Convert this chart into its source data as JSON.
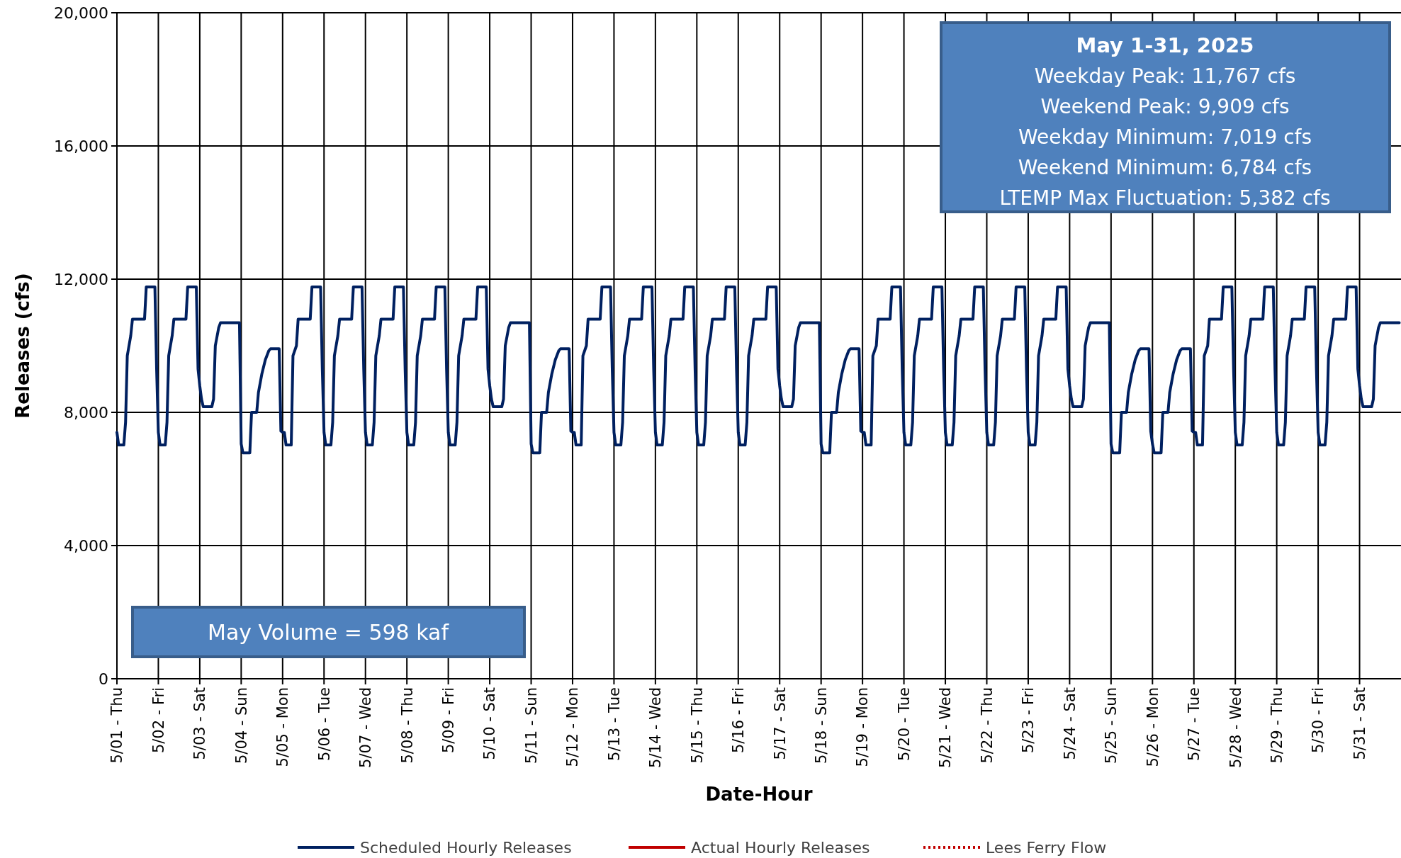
{
  "chart_data": {
    "type": "line",
    "xlabel": "Date-Hour",
    "ylabel": "Releases (cfs)",
    "grid": true,
    "legend": "bottom",
    "xlim": [
      "2025-05-01T00:00",
      "2025-06-01T00:00"
    ],
    "ylim": [
      0,
      20000
    ],
    "yticks": [
      0,
      {
        "value": 4000,
        "label": "4,000"
      },
      {
        "value": 8000,
        "label": "8,000"
      },
      {
        "value": 12000,
        "label": "12,000"
      },
      {
        "value": 16000,
        "label": "16,000"
      },
      {
        "value": 20000,
        "label": "20,000"
      }
    ],
    "xticks": [
      {
        "value": "2025-05-01",
        "label": "5/01 - Thu"
      },
      {
        "value": "2025-05-02",
        "label": "5/02 - Fri"
      },
      {
        "value": "2025-05-03",
        "label": "5/03 - Sat"
      },
      {
        "value": "2025-05-04",
        "label": "5/04 - Sun"
      },
      {
        "value": "2025-05-05",
        "label": "5/05 - Mon"
      },
      {
        "value": "2025-05-06",
        "label": "5/06 - Tue"
      },
      {
        "value": "2025-05-07",
        "label": "5/07 - Wed"
      },
      {
        "value": "2025-05-08",
        "label": "5/08 - Thu"
      },
      {
        "value": "2025-05-09",
        "label": "5/09 - Fri"
      },
      {
        "value": "2025-05-10",
        "label": "5/10 - Sat"
      },
      {
        "value": "2025-05-11",
        "label": "5/11 - Sun"
      },
      {
        "value": "2025-05-12",
        "label": "5/12 - Mon"
      },
      {
        "value": "2025-05-13",
        "label": "5/13 - Tue"
      },
      {
        "value": "2025-05-14",
        "label": "5/14 - Wed"
      },
      {
        "value": "2025-05-15",
        "label": "5/15 - Thu"
      },
      {
        "value": "2025-05-16",
        "label": "5/16 - Fri"
      },
      {
        "value": "2025-05-17",
        "label": "5/17 - Sat"
      },
      {
        "value": "2025-05-18",
        "label": "5/18 - Sun"
      },
      {
        "value": "2025-05-19",
        "label": "5/19 - Mon"
      },
      {
        "value": "2025-05-20",
        "label": "5/20 - Tue"
      },
      {
        "value": "2025-05-21",
        "label": "5/21 - Wed"
      },
      {
        "value": "2025-05-22",
        "label": "5/22 - Thu"
      },
      {
        "value": "2025-05-23",
        "label": "5/23 - Fri"
      },
      {
        "value": "2025-05-24",
        "label": "5/24 - Sat"
      },
      {
        "value": "2025-05-25",
        "label": "5/25 - Sun"
      },
      {
        "value": "2025-05-26",
        "label": "5/26 - Mon"
      },
      {
        "value": "2025-05-27",
        "label": "5/27 - Tue"
      },
      {
        "value": "2025-05-28",
        "label": "5/28 - Wed"
      },
      {
        "value": "2025-05-29",
        "label": "5/29 - Thu"
      },
      {
        "value": "2025-05-30",
        "label": "5/30 - Fri"
      },
      {
        "value": "2025-05-31",
        "label": "5/31 - Sat"
      }
    ],
    "annotations": [
      "May 1-31, 2025",
      "Weekday Peak: 11,767 cfs",
      "Weekend Peak: 9,909 cfs",
      "Weekday Minimum: 7,019 cfs",
      "Weekend Minimum:  6,784 cfs",
      "LTEMP Max Fluctuation: 5,382 cfs",
      "May Volume = 598 kaf"
    ],
    "series": [
      {
        "name": "Scheduled Hourly Releases",
        "color": "#002060",
        "line_style": "solid",
        "x": [
          "2025-05-01T00:00",
          "2025-05-01T01:00",
          "2025-05-01T04:00",
          "2025-05-01T05:00",
          "2025-05-01T06:00",
          "2025-05-01T07:00",
          "2025-05-01T08:00",
          "2025-05-01T09:00",
          "2025-05-01T16:00",
          "2025-05-01T17:00",
          "2025-05-01T22:00",
          "2025-05-01T23:00",
          "2025-05-02T00:00",
          "2025-05-02T01:00",
          "2025-05-02T04:00",
          "2025-05-02T05:00",
          "2025-05-02T06:00",
          "2025-05-02T07:00",
          "2025-05-02T08:00",
          "2025-05-02T09:00",
          "2025-05-02T16:00",
          "2025-05-02T17:00",
          "2025-05-02T22:00",
          "2025-05-02T23:00",
          "2025-05-03T00:00",
          "2025-05-03T01:00",
          "2025-05-03T02:00",
          "2025-05-03T07:00",
          "2025-05-03T08:00",
          "2025-05-03T09:00",
          "2025-05-03T11:00",
          "2025-05-03T12:00",
          "2025-05-03T23:00",
          "2025-05-04T00:00",
          "2025-05-04T01:00",
          "2025-05-04T05:00",
          "2025-05-04T06:00",
          "2025-05-04T09:00",
          "2025-05-04T10:00",
          "2025-05-04T12:00",
          "2025-05-04T14:00",
          "2025-05-04T16:00",
          "2025-05-04T17:00",
          "2025-05-04T22:00",
          "2025-05-04T23:00",
          "2025-05-05T00:00",
          "2025-05-05T01:00",
          "2025-05-05T02:00",
          "2025-05-05T05:00",
          "2025-05-05T06:00",
          "2025-05-05T08:00",
          "2025-05-05T09:00",
          "2025-05-05T16:00",
          "2025-05-05T17:00",
          "2025-05-05T22:00",
          "2025-05-05T23:00",
          "2025-05-06T00:00",
          "2025-05-06T01:00",
          "2025-05-06T04:00",
          "2025-05-06T05:00",
          "2025-05-06T06:00",
          "2025-05-06T07:00",
          "2025-05-06T08:00",
          "2025-05-06T09:00",
          "2025-05-06T16:00",
          "2025-05-06T17:00",
          "2025-05-06T22:00",
          "2025-05-06T23:00",
          "2025-05-07T00:00",
          "2025-05-07T01:00",
          "2025-05-07T04:00",
          "2025-05-07T05:00",
          "2025-05-07T06:00",
          "2025-05-07T07:00",
          "2025-05-07T08:00",
          "2025-05-07T09:00",
          "2025-05-07T16:00",
          "2025-05-07T17:00",
          "2025-05-07T22:00",
          "2025-05-07T23:00",
          "2025-05-08T00:00",
          "2025-05-08T01:00",
          "2025-05-08T04:00",
          "2025-05-08T05:00",
          "2025-05-08T06:00",
          "2025-05-08T07:00",
          "2025-05-08T08:00",
          "2025-05-08T09:00",
          "2025-05-08T16:00",
          "2025-05-08T17:00",
          "2025-05-08T22:00",
          "2025-05-08T23:00",
          "2025-05-09T00:00",
          "2025-05-09T01:00",
          "2025-05-09T04:00",
          "2025-05-09T05:00",
          "2025-05-09T06:00",
          "2025-05-09T07:00",
          "2025-05-09T08:00",
          "2025-05-09T09:00",
          "2025-05-09T16:00",
          "2025-05-09T17:00",
          "2025-05-09T22:00",
          "2025-05-09T23:00",
          "2025-05-10T00:00",
          "2025-05-10T01:00",
          "2025-05-10T02:00",
          "2025-05-10T07:00",
          "2025-05-10T08:00",
          "2025-05-10T09:00",
          "2025-05-10T11:00",
          "2025-05-10T12:00",
          "2025-05-10T23:00",
          "2025-05-11T00:00",
          "2025-05-11T01:00",
          "2025-05-11T05:00",
          "2025-05-11T06:00",
          "2025-05-11T09:00",
          "2025-05-11T10:00",
          "2025-05-11T12:00",
          "2025-05-11T14:00",
          "2025-05-11T16:00",
          "2025-05-11T17:00",
          "2025-05-11T22:00",
          "2025-05-11T23:00",
          "2025-05-12T00:00",
          "2025-05-12T01:00",
          "2025-05-12T02:00",
          "2025-05-12T05:00",
          "2025-05-12T06:00",
          "2025-05-12T08:00",
          "2025-05-12T09:00",
          "2025-05-12T16:00",
          "2025-05-12T17:00",
          "2025-05-12T22:00",
          "2025-05-12T23:00",
          "2025-05-13T00:00",
          "2025-05-13T01:00",
          "2025-05-13T04:00",
          "2025-05-13T05:00",
          "2025-05-13T06:00",
          "2025-05-13T07:00",
          "2025-05-13T08:00",
          "2025-05-13T09:00",
          "2025-05-13T16:00",
          "2025-05-13T17:00",
          "2025-05-13T22:00",
          "2025-05-13T23:00",
          "2025-05-14T00:00",
          "2025-05-14T01:00",
          "2025-05-14T04:00",
          "2025-05-14T05:00",
          "2025-05-14T06:00",
          "2025-05-14T07:00",
          "2025-05-14T08:00",
          "2025-05-14T09:00",
          "2025-05-14T16:00",
          "2025-05-14T17:00",
          "2025-05-14T22:00",
          "2025-05-14T23:00",
          "2025-05-15T00:00",
          "2025-05-15T01:00",
          "2025-05-15T04:00",
          "2025-05-15T05:00",
          "2025-05-15T06:00",
          "2025-05-15T07:00",
          "2025-05-15T08:00",
          "2025-05-15T09:00",
          "2025-05-15T16:00",
          "2025-05-15T17:00",
          "2025-05-15T22:00",
          "2025-05-15T23:00",
          "2025-05-16T00:00",
          "2025-05-16T01:00",
          "2025-05-16T04:00",
          "2025-05-16T05:00",
          "2025-05-16T06:00",
          "2025-05-16T07:00",
          "2025-05-16T08:00",
          "2025-05-16T09:00",
          "2025-05-16T16:00",
          "2025-05-16T17:00",
          "2025-05-16T22:00",
          "2025-05-16T23:00",
          "2025-05-17T00:00",
          "2025-05-17T01:00",
          "2025-05-17T02:00",
          "2025-05-17T07:00",
          "2025-05-17T08:00",
          "2025-05-17T09:00",
          "2025-05-17T11:00",
          "2025-05-17T12:00",
          "2025-05-17T23:00",
          "2025-05-18T00:00",
          "2025-05-18T01:00",
          "2025-05-18T05:00",
          "2025-05-18T06:00",
          "2025-05-18T09:00",
          "2025-05-18T10:00",
          "2025-05-18T12:00",
          "2025-05-18T14:00",
          "2025-05-18T16:00",
          "2025-05-18T17:00",
          "2025-05-18T22:00",
          "2025-05-18T23:00",
          "2025-05-19T00:00",
          "2025-05-19T01:00",
          "2025-05-19T02:00",
          "2025-05-19T05:00",
          "2025-05-19T06:00",
          "2025-05-19T08:00",
          "2025-05-19T09:00",
          "2025-05-19T16:00",
          "2025-05-19T17:00",
          "2025-05-19T22:00",
          "2025-05-19T23:00",
          "2025-05-20T00:00",
          "2025-05-20T01:00",
          "2025-05-20T04:00",
          "2025-05-20T05:00",
          "2025-05-20T06:00",
          "2025-05-20T07:00",
          "2025-05-20T08:00",
          "2025-05-20T09:00",
          "2025-05-20T16:00",
          "2025-05-20T17:00",
          "2025-05-20T22:00",
          "2025-05-20T23:00",
          "2025-05-21T00:00",
          "2025-05-21T01:00",
          "2025-05-21T04:00",
          "2025-05-21T05:00",
          "2025-05-21T06:00",
          "2025-05-21T07:00",
          "2025-05-21T08:00",
          "2025-05-21T09:00",
          "2025-05-21T16:00",
          "2025-05-21T17:00",
          "2025-05-21T22:00",
          "2025-05-21T23:00",
          "2025-05-22T00:00",
          "2025-05-22T01:00",
          "2025-05-22T04:00",
          "2025-05-22T05:00",
          "2025-05-22T06:00",
          "2025-05-22T07:00",
          "2025-05-22T08:00",
          "2025-05-22T09:00",
          "2025-05-22T16:00",
          "2025-05-22T17:00",
          "2025-05-22T22:00",
          "2025-05-22T23:00",
          "2025-05-23T00:00",
          "2025-05-23T01:00",
          "2025-05-23T04:00",
          "2025-05-23T05:00",
          "2025-05-23T06:00",
          "2025-05-23T07:00",
          "2025-05-23T08:00",
          "2025-05-23T09:00",
          "2025-05-23T16:00",
          "2025-05-23T17:00",
          "2025-05-23T22:00",
          "2025-05-23T23:00",
          "2025-05-24T00:00",
          "2025-05-24T01:00",
          "2025-05-24T02:00",
          "2025-05-24T07:00",
          "2025-05-24T08:00",
          "2025-05-24T09:00",
          "2025-05-24T11:00",
          "2025-05-24T12:00",
          "2025-05-24T23:00",
          "2025-05-25T00:00",
          "2025-05-25T01:00",
          "2025-05-25T05:00",
          "2025-05-25T06:00",
          "2025-05-25T09:00",
          "2025-05-25T10:00",
          "2025-05-25T12:00",
          "2025-05-25T14:00",
          "2025-05-25T16:00",
          "2025-05-25T17:00",
          "2025-05-25T22:00",
          "2025-05-25T23:00",
          "2025-05-26T00:00",
          "2025-05-26T01:00",
          "2025-05-26T05:00",
          "2025-05-26T06:00",
          "2025-05-26T09:00",
          "2025-05-26T10:00",
          "2025-05-26T12:00",
          "2025-05-26T14:00",
          "2025-05-26T16:00",
          "2025-05-26T17:00",
          "2025-05-26T22:00",
          "2025-05-26T23:00",
          "2025-05-27T00:00",
          "2025-05-27T01:00",
          "2025-05-27T02:00",
          "2025-05-27T05:00",
          "2025-05-27T06:00",
          "2025-05-27T08:00",
          "2025-05-27T09:00",
          "2025-05-27T16:00",
          "2025-05-27T17:00",
          "2025-05-27T22:00",
          "2025-05-27T23:00",
          "2025-05-28T00:00",
          "2025-05-28T01:00",
          "2025-05-28T04:00",
          "2025-05-28T05:00",
          "2025-05-28T06:00",
          "2025-05-28T07:00",
          "2025-05-28T08:00",
          "2025-05-28T09:00",
          "2025-05-28T16:00",
          "2025-05-28T17:00",
          "2025-05-28T22:00",
          "2025-05-28T23:00",
          "2025-05-29T00:00",
          "2025-05-29T01:00",
          "2025-05-29T04:00",
          "2025-05-29T05:00",
          "2025-05-29T06:00",
          "2025-05-29T07:00",
          "2025-05-29T08:00",
          "2025-05-29T09:00",
          "2025-05-29T16:00",
          "2025-05-29T17:00",
          "2025-05-29T22:00",
          "2025-05-29T23:00",
          "2025-05-30T00:00",
          "2025-05-30T01:00",
          "2025-05-30T04:00",
          "2025-05-30T05:00",
          "2025-05-30T06:00",
          "2025-05-30T07:00",
          "2025-05-30T08:00",
          "2025-05-30T09:00",
          "2025-05-30T16:00",
          "2025-05-30T17:00",
          "2025-05-30T22:00",
          "2025-05-30T23:00",
          "2025-05-31T00:00",
          "2025-05-31T01:00",
          "2025-05-31T02:00",
          "2025-05-31T07:00",
          "2025-05-31T08:00",
          "2025-05-31T09:00",
          "2025-05-31T11:00",
          "2025-05-31T12:00",
          "2025-05-31T23:00"
        ],
        "values": [
          7400,
          7019,
          7019,
          7700,
          9700,
          10000,
          10300,
          10800,
          10800,
          11767,
          11767,
          9300,
          7400,
          7019,
          7019,
          7700,
          9700,
          10000,
          10300,
          10800,
          10800,
          11767,
          11767,
          9300,
          8800,
          8400,
          8170,
          8170,
          8400,
          10000,
          10550,
          10690,
          10690,
          7050,
          6784,
          6784,
          8000,
          8000,
          8600,
          9160,
          9580,
          9850,
          9909,
          9909,
          7437,
          7400,
          7400,
          7019,
          7019,
          9700,
          10000,
          10800,
          10800,
          11767,
          11767,
          9300,
          7400,
          7019,
          7019,
          7700,
          9700,
          10000,
          10300,
          10800,
          10800,
          11767,
          11767,
          9300,
          7400,
          7019,
          7019,
          7700,
          9700,
          10000,
          10300,
          10800,
          10800,
          11767,
          11767,
          9300,
          7400,
          7019,
          7019,
          7700,
          9700,
          10000,
          10300,
          10800,
          10800,
          11767,
          11767,
          9300,
          7400,
          7019,
          7019,
          7700,
          9700,
          10000,
          10300,
          10800,
          10800,
          11767,
          11767,
          9300,
          8800,
          8400,
          8170,
          8170,
          8400,
          10000,
          10550,
          10690,
          10690,
          7050,
          6784,
          6784,
          8000,
          8000,
          8600,
          9160,
          9580,
          9850,
          9909,
          9909,
          7437,
          7400,
          7400,
          7019,
          7019,
          9700,
          10000,
          10800,
          10800,
          11767,
          11767,
          9300,
          7400,
          7019,
          7019,
          7700,
          9700,
          10000,
          10300,
          10800,
          10800,
          11767,
          11767,
          9300,
          7400,
          7019,
          7019,
          7700,
          9700,
          10000,
          10300,
          10800,
          10800,
          11767,
          11767,
          9300,
          7400,
          7019,
          7019,
          7700,
          9700,
          10000,
          10300,
          10800,
          10800,
          11767,
          11767,
          9300,
          7400,
          7019,
          7019,
          7700,
          9700,
          10000,
          10300,
          10800,
          10800,
          11767,
          11767,
          9300,
          8800,
          8400,
          8170,
          8170,
          8400,
          10000,
          10550,
          10690,
          10690,
          7050,
          6784,
          6784,
          8000,
          8000,
          8600,
          9160,
          9580,
          9850,
          9909,
          9909,
          7437,
          7400,
          7400,
          7019,
          7019,
          9700,
          10000,
          10800,
          10800,
          11767,
          11767,
          9300,
          7400,
          7019,
          7019,
          7700,
          9700,
          10000,
          10300,
          10800,
          10800,
          11767,
          11767,
          9300,
          7400,
          7019,
          7019,
          7700,
          9700,
          10000,
          10300,
          10800,
          10800,
          11767,
          11767,
          9300,
          7400,
          7019,
          7019,
          7700,
          9700,
          10000,
          10300,
          10800,
          10800,
          11767,
          11767,
          9300,
          7400,
          7019,
          7019,
          7700,
          9700,
          10000,
          10300,
          10800,
          10800,
          11767,
          11767,
          9300,
          8800,
          8400,
          8170,
          8170,
          8400,
          10000,
          10550,
          10690,
          10690,
          7050,
          6784,
          6784,
          8000,
          8000,
          8600,
          9160,
          9580,
          9850,
          9909,
          9909,
          7437,
          7050,
          6784,
          6784,
          8000,
          8000,
          8600,
          9160,
          9580,
          9850,
          9909,
          9909,
          7437,
          7400,
          7400,
          7019,
          7019,
          9700,
          10000,
          10800,
          10800,
          11767,
          11767,
          9300,
          7400,
          7019,
          7019,
          7700,
          9700,
          10000,
          10300,
          10800,
          10800,
          11767,
          11767,
          9300,
          7400,
          7019,
          7019,
          7700,
          9700,
          10000,
          10300,
          10800,
          10800,
          11767,
          11767,
          9300,
          7400,
          7019,
          7019,
          7700,
          9700,
          10000,
          10300,
          10800,
          10800,
          11767,
          11767,
          9300,
          8800,
          8400,
          8170,
          8170,
          8400,
          10000,
          10550,
          10690,
          10690
        ]
      },
      {
        "name": "Actual Hourly Releases",
        "color": "#c00000",
        "line_style": "solid"
      },
      {
        "name": "Lees Ferry Flow",
        "color": "#c00000",
        "line_style": "dotted"
      }
    ]
  }
}
